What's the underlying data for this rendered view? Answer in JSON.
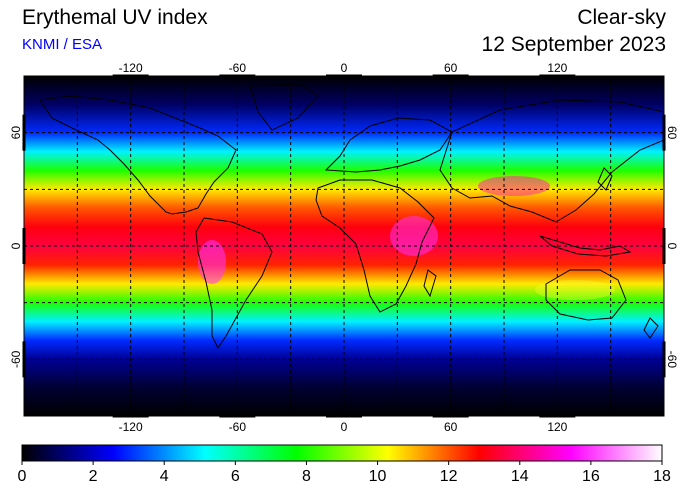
{
  "header": {
    "title": "Erythemal UV index",
    "credit": "KNMI / ESA",
    "product": "Clear-sky",
    "date": "12 September 2023"
  },
  "map": {
    "projection": "equirectangular",
    "lon_range": [
      -180,
      180
    ],
    "lat_range": [
      -90,
      90
    ],
    "graticule_step_deg": 30,
    "grid": "dashed",
    "lon_ticks": [
      -120,
      -60,
      0,
      60,
      120
    ],
    "lat_ticks": [
      60,
      0,
      -60
    ],
    "lon_tick_labels": [
      "-120",
      "-60",
      "0",
      "60",
      "120"
    ],
    "lat_tick_labels": [
      "60",
      "0",
      "-60"
    ],
    "coastlines": true
  },
  "colorbar": {
    "min": 0,
    "max": 18,
    "tick_values": [
      0,
      2,
      4,
      6,
      8,
      10,
      12,
      14,
      16,
      18
    ],
    "tick_labels": [
      "0",
      "2",
      "4",
      "6",
      "8",
      "10",
      "12",
      "14",
      "16",
      "18"
    ],
    "colors": [
      "#000000",
      "#0000ff",
      "#00ffff",
      "#00ff00",
      "#ffff00",
      "#ff0000",
      "#ff00ff",
      "#ffffff"
    ]
  },
  "uv_profile_by_latitude": [
    {
      "lat": 90,
      "uv": 0
    },
    {
      "lat": 75,
      "uv": 1
    },
    {
      "lat": 60,
      "uv": 3
    },
    {
      "lat": 50,
      "uv": 5
    },
    {
      "lat": 40,
      "uv": 8
    },
    {
      "lat": 30,
      "uv": 10.5
    },
    {
      "lat": 20,
      "uv": 12
    },
    {
      "lat": 10,
      "uv": 13
    },
    {
      "lat": 0,
      "uv": 13.5
    },
    {
      "lat": -10,
      "uv": 12.5
    },
    {
      "lat": -20,
      "uv": 10.5
    },
    {
      "lat": -30,
      "uv": 8
    },
    {
      "lat": -40,
      "uv": 5
    },
    {
      "lat": -50,
      "uv": 3
    },
    {
      "lat": -60,
      "uv": 1.5
    },
    {
      "lat": -75,
      "uv": 0.5
    },
    {
      "lat": -90,
      "uv": 0
    }
  ]
}
